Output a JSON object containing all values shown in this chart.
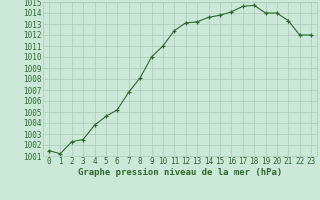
{
  "x": [
    0,
    1,
    2,
    3,
    4,
    5,
    6,
    7,
    8,
    9,
    10,
    11,
    12,
    13,
    14,
    15,
    16,
    17,
    18,
    19,
    20,
    21,
    22,
    23
  ],
  "y": [
    1001.5,
    1001.2,
    1002.3,
    1002.5,
    1003.8,
    1004.6,
    1005.2,
    1006.8,
    1008.1,
    1010.0,
    1011.0,
    1012.4,
    1013.1,
    1013.2,
    1013.6,
    1013.8,
    1014.1,
    1014.6,
    1014.7,
    1014.0,
    1014.0,
    1013.3,
    1012.0,
    1012.0
  ],
  "xlabel": "Graphe pression niveau de la mer (hPa)",
  "ylim": [
    1001,
    1015
  ],
  "xlim": [
    -0.5,
    23.5
  ],
  "yticks": [
    1001,
    1002,
    1003,
    1004,
    1005,
    1006,
    1007,
    1008,
    1009,
    1010,
    1011,
    1012,
    1013,
    1014,
    1015
  ],
  "yticklabels": [
    "1001",
    "1002",
    "1003",
    "1004",
    "1005",
    "1006",
    "1007",
    "1008",
    "1009",
    "1010",
    "1011",
    "1012",
    "1013",
    "1014",
    "1015"
  ],
  "xticks": [
    0,
    1,
    2,
    3,
    4,
    5,
    6,
    7,
    8,
    9,
    10,
    11,
    12,
    13,
    14,
    15,
    16,
    17,
    18,
    19,
    20,
    21,
    22,
    23
  ],
  "xticklabels": [
    "0",
    "1",
    "2",
    "3",
    "4",
    "5",
    "6",
    "7",
    "8",
    "9",
    "10",
    "11",
    "12",
    "13",
    "14",
    "15",
    "16",
    "17",
    "18",
    "19",
    "20",
    "21",
    "22",
    "23"
  ],
  "line_color": "#2d6a2d",
  "marker_color": "#2d6a2d",
  "bg_color": "#cce8d8",
  "grid_color": "#aaccb8",
  "xlabel_color": "#2d6a2d",
  "xlabel_fontsize": 6.5,
  "xlabel_fontweight": "bold",
  "tick_fontsize": 5.5,
  "tick_color": "#2d6a2d"
}
